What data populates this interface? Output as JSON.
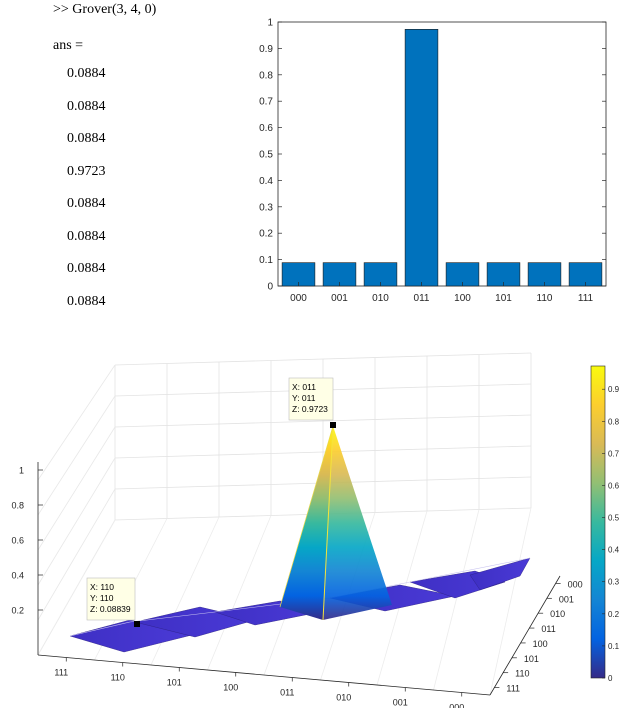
{
  "console": {
    "command": ">> Grover(3, 4, 0)",
    "ans_label": "ans =",
    "values": [
      "0.0884",
      "0.0884",
      "0.0884",
      "0.9723",
      "0.0884",
      "0.0884",
      "0.0884",
      "0.0884"
    ]
  },
  "chart_data": [
    {
      "type": "bar",
      "categories": [
        "000",
        "001",
        "010",
        "011",
        "100",
        "101",
        "110",
        "111"
      ],
      "values": [
        0.0884,
        0.0884,
        0.0884,
        0.9723,
        0.0884,
        0.0884,
        0.0884,
        0.0884
      ],
      "ylim": [
        0,
        1
      ],
      "yticks": [
        "0",
        "0.1",
        "0.2",
        "0.3",
        "0.4",
        "0.5",
        "0.6",
        "0.7",
        "0.8",
        "0.9",
        "1"
      ],
      "bar_color": "#0072BD",
      "grid": false
    },
    {
      "type": "surface",
      "x_ticks": [
        "111",
        "110",
        "101",
        "100",
        "011",
        "010",
        "001",
        "000"
      ],
      "y_ticks": [
        "000",
        "001",
        "010",
        "011",
        "100",
        "101",
        "110",
        "111"
      ],
      "z_ticks": [
        "0.2",
        "0.4",
        "0.6",
        "0.8",
        "1"
      ],
      "zlim": [
        0,
        1
      ],
      "peak": {
        "x": "011",
        "y": "011",
        "z": 0.9723
      },
      "floor_value": 0.08839,
      "colormap": "parula",
      "colorbar_ticks": [
        "0",
        "0.1",
        "0.2",
        "0.3",
        "0.4",
        "0.5",
        "0.6",
        "0.7",
        "0.8",
        "0.9"
      ],
      "datatips": [
        {
          "x_label": "X: 011",
          "y_label": "Y: 011",
          "z_label": "Z: 0.9723"
        },
        {
          "x_label": "X: 110",
          "y_label": "Y: 110",
          "z_label": "Z: 0.08839"
        }
      ],
      "grid": true
    }
  ]
}
